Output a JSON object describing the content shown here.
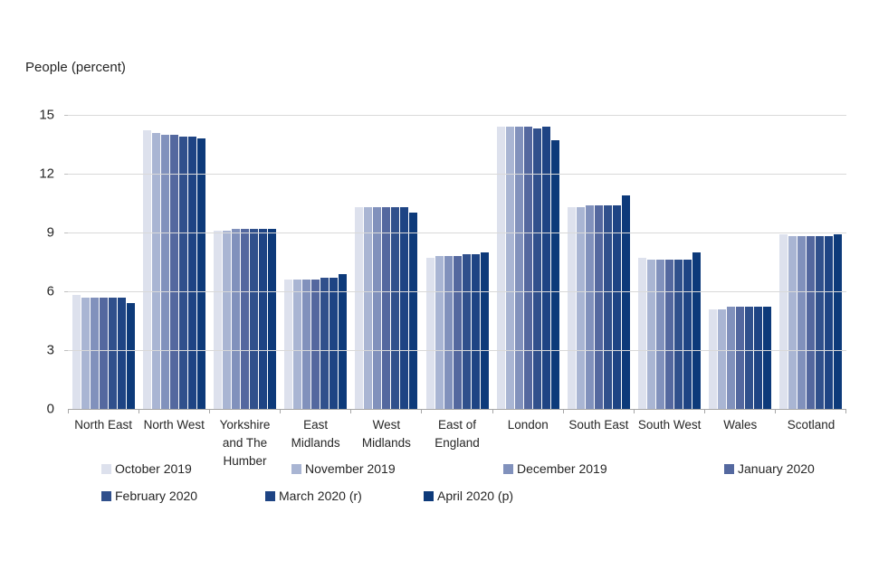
{
  "title": "People (percent)",
  "chart_data": {
    "type": "bar",
    "title": "People (percent)",
    "xlabel": "",
    "ylabel": "People (percent)",
    "ylim": [
      0,
      15
    ],
    "y_ticks": [
      0,
      3,
      6,
      9,
      12,
      15
    ],
    "grid": "horizontal",
    "legend_position": "bottom",
    "categories": [
      "North East",
      "North West",
      "Yorkshire and The Humber",
      "East Midlands",
      "West Midlands",
      "East of England",
      "London",
      "South East",
      "South West",
      "Wales",
      "Scotland"
    ],
    "series": [
      {
        "name": "October 2019",
        "color": "#dde1ed",
        "values": [
          5.8,
          14.2,
          9.1,
          6.6,
          10.3,
          7.7,
          14.4,
          10.3,
          7.7,
          5.1,
          8.9
        ]
      },
      {
        "name": "November 2019",
        "color": "#a9b5d3",
        "values": [
          5.7,
          14.1,
          9.1,
          6.6,
          10.3,
          7.8,
          14.4,
          10.3,
          7.6,
          5.1,
          8.8
        ]
      },
      {
        "name": "December 2019",
        "color": "#8191bc",
        "values": [
          5.7,
          14.0,
          9.2,
          6.6,
          10.3,
          7.8,
          14.4,
          10.4,
          7.6,
          5.2,
          8.8
        ]
      },
      {
        "name": "January 2020",
        "color": "#54689f",
        "values": [
          5.7,
          14.0,
          9.2,
          6.6,
          10.3,
          7.8,
          14.4,
          10.4,
          7.6,
          5.2,
          8.8
        ]
      },
      {
        "name": "February 2020",
        "color": "#30508c",
        "values": [
          5.7,
          13.9,
          9.2,
          6.7,
          10.3,
          7.9,
          14.3,
          10.4,
          7.6,
          5.2,
          8.8
        ]
      },
      {
        "name": "March 2020 (r)",
        "color": "#1e4484",
        "values": [
          5.7,
          13.9,
          9.2,
          6.7,
          10.3,
          7.9,
          14.4,
          10.4,
          7.6,
          5.2,
          8.8
        ]
      },
      {
        "name": "April 2020 (p)",
        "color": "#0d3a7a",
        "values": [
          5.4,
          13.8,
          9.2,
          6.9,
          10.0,
          8.0,
          13.7,
          10.9,
          8.0,
          5.2,
          8.9
        ]
      }
    ]
  }
}
